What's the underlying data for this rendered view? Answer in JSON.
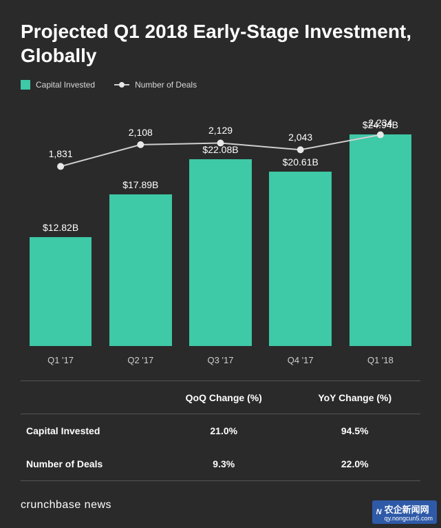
{
  "background_color": "#2a2a2a",
  "text_color": "#ffffff",
  "muted_text_color": "#d8d8d8",
  "axis_text_color": "#cfcfcf",
  "border_color": "#555555",
  "teal": "#3ec9a7",
  "marker_color": "#e8e8e8",
  "line_color": "#cfcfcf",
  "title": "Projected Q1 2018 Early-Stage Investment, Globally",
  "legend": {
    "capital": "Capital Invested",
    "deals": "Number of Deals"
  },
  "chart": {
    "type": "bar+line",
    "categories": [
      "Q1 '17",
      "Q2 '17",
      "Q3 '17",
      "Q4 '17",
      "Q1 '18"
    ],
    "bar_values": [
      12.82,
      17.89,
      22.08,
      20.61,
      24.94
    ],
    "bar_labels": [
      "$12.82B",
      "$17.89B",
      "$22.08B",
      "$20.61B",
      "$24.94B"
    ],
    "bar_ymax": 27,
    "line_values": [
      1831,
      2108,
      2129,
      2043,
      2234
    ],
    "line_labels": [
      "1,831",
      "2,108",
      "2,129",
      "2,043",
      "2,234"
    ],
    "line_ymin": 1700,
    "line_ymax": 2400,
    "bar_width_pct": 78
  },
  "table": {
    "col_headers": [
      "",
      "QoQ Change (%)",
      "YoY Change (%)"
    ],
    "rows": [
      {
        "label": "Capital Invested",
        "qoq": "21.0%",
        "yoy": "94.5%"
      },
      {
        "label": "Number of Deals",
        "qoq": "9.3%",
        "yoy": "22.0%"
      }
    ]
  },
  "footer": "crunchbase news",
  "watermark": {
    "zh": "农企新闻网",
    "url": "qy.nongcun5.com",
    "bg": "#2f5aa8",
    "fg": "#ffffff"
  }
}
